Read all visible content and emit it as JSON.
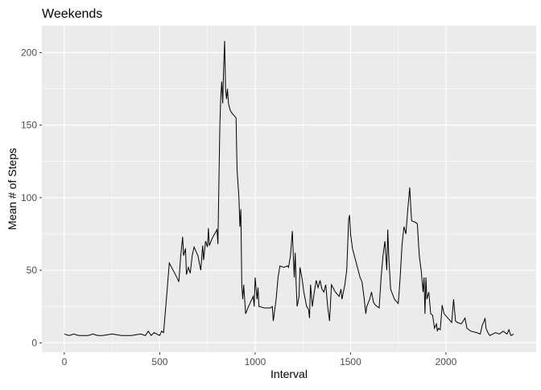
{
  "chart_data": {
    "type": "line",
    "title": "Weekends",
    "x_label": "Interval",
    "y_label": "Mean # of Steps",
    "xlim": [
      -117.75,
      2472.75
    ],
    "ylim": [
      -6.5,
      218.5
    ],
    "xticks": [
      0,
      500,
      1000,
      1500,
      2000
    ],
    "yticks": [
      0,
      50,
      100,
      150,
      200
    ],
    "grid": true,
    "color": "#000000",
    "x": [
      0,
      25,
      50,
      75,
      100,
      125,
      150,
      175,
      200,
      250,
      300,
      350,
      400,
      425,
      440,
      455,
      470,
      500,
      510,
      520,
      535,
      550,
      570,
      590,
      600,
      610,
      620,
      625,
      635,
      640,
      650,
      660,
      670,
      680,
      700,
      715,
      725,
      730,
      740,
      750,
      755,
      760,
      775,
      800,
      805,
      810,
      815,
      820,
      825,
      830,
      835,
      840,
      845,
      850,
      855,
      860,
      870,
      880,
      900,
      905,
      915,
      920,
      925,
      930,
      935,
      940,
      950,
      965,
      990,
      995,
      1000,
      1010,
      1015,
      1020,
      1050,
      1080,
      1090,
      1095,
      1105,
      1110,
      1120,
      1130,
      1150,
      1170,
      1175,
      1185,
      1195,
      1200,
      1205,
      1210,
      1215,
      1220,
      1230,
      1235,
      1245,
      1255,
      1270,
      1280,
      1285,
      1290,
      1300,
      1310,
      1320,
      1330,
      1340,
      1350,
      1360,
      1370,
      1380,
      1390,
      1400,
      1420,
      1440,
      1450,
      1455,
      1470,
      1480,
      1490,
      1495,
      1500,
      1510,
      1520,
      1540,
      1550,
      1560,
      1570,
      1580,
      1585,
      1600,
      1610,
      1620,
      1630,
      1650,
      1660,
      1670,
      1680,
      1690,
      1695,
      1700,
      1710,
      1730,
      1750,
      1760,
      1770,
      1780,
      1790,
      1800,
      1810,
      1815,
      1820,
      1840,
      1850,
      1860,
      1870,
      1880,
      1885,
      1890,
      1895,
      1900,
      1910,
      1920,
      1930,
      1940,
      1950,
      1955,
      1960,
      1970,
      1975,
      1980,
      1990,
      2010,
      2030,
      2040,
      2050,
      2060,
      2080,
      2100,
      2110,
      2130,
      2160,
      2180,
      2190,
      2200,
      2205,
      2210,
      2220,
      2230,
      2260,
      2280,
      2300,
      2320,
      2330,
      2340,
      2355
    ],
    "values": [
      6,
      5,
      6,
      5,
      5,
      5,
      6,
      5,
      5,
      6,
      5,
      5,
      6,
      5,
      8,
      5,
      7,
      5,
      8,
      7,
      30,
      55,
      50,
      45,
      42,
      60,
      73,
      60,
      65,
      47,
      52,
      48,
      60,
      66,
      60,
      50,
      67,
      57,
      70,
      66,
      79,
      67,
      72,
      78,
      68,
      110,
      150,
      170,
      180,
      165,
      190,
      208,
      175,
      168,
      175,
      165,
      160,
      158,
      155,
      120,
      100,
      80,
      92,
      40,
      30,
      40,
      20,
      25,
      32,
      25,
      45,
      30,
      38,
      25,
      24,
      24,
      25,
      15,
      25,
      30,
      45,
      53,
      52,
      53,
      52,
      60,
      77,
      60,
      45,
      62,
      40,
      25,
      32,
      52,
      45,
      35,
      25,
      23,
      17,
      40,
      25,
      35,
      43,
      38,
      43,
      37,
      35,
      40,
      25,
      15,
      40,
      35,
      32,
      37,
      30,
      40,
      50,
      85,
      88,
      75,
      65,
      60,
      50,
      45,
      42,
      32,
      20,
      25,
      30,
      35,
      28,
      26,
      24,
      45,
      60,
      70,
      50,
      78,
      60,
      37,
      30,
      27,
      45,
      68,
      80,
      75,
      92,
      107,
      95,
      84,
      83,
      82,
      60,
      50,
      35,
      45,
      20,
      45,
      30,
      35,
      20,
      19,
      10,
      13,
      8,
      10,
      9,
      17,
      26,
      20,
      17,
      14,
      30,
      15,
      14,
      13,
      17,
      10,
      8,
      7,
      6,
      12,
      15,
      17,
      10,
      7,
      5,
      7,
      6,
      8,
      6,
      9,
      5,
      6
    ]
  }
}
